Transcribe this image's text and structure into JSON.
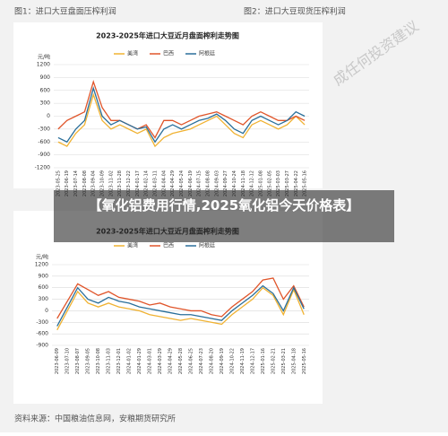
{
  "captions": [
    "图1：进口大豆盘面压榨利润",
    "图2：进口大豆现货压榨利润"
  ],
  "watermark": "成任何投资建议",
  "overlay_title": "【氧化铝费用行情,2025氧化铝今天价格表】",
  "source": "资料来源：中国粮油信息网，安粮期货研究所",
  "chart_data": [
    {
      "type": "line",
      "title": "2023-2025年进口大豆近月盘面榨利走势图",
      "y_unit": "元/吨",
      "categories": [
        "2023-05-25",
        "2023-06-19",
        "2023-07-14",
        "2023-08-08",
        "2023-09-04",
        "2023-10-09",
        "2023-11-02",
        "2023-11-28",
        "2023-12-22",
        "2024-01-17",
        "2024-02-14",
        "2024-03-11",
        "2024-04-04",
        "2024-04-29",
        "2024-05-24",
        "2024-06-19",
        "2024-07-15",
        "2024-08-08",
        "2024-09-03",
        "2024-09-27",
        "2024-10-24",
        "2024-11-18",
        "2024-12-12",
        "2025-01-08",
        "2025-02-05",
        "2025-03-03",
        "2025-03-27",
        "2025-04-22",
        "2025-05-16"
      ],
      "series": [
        {
          "name": "美湾",
          "color": "#f0b232",
          "values": [
            -600,
            -700,
            -400,
            -200,
            500,
            -100,
            -300,
            -200,
            -300,
            -400,
            -300,
            -700,
            -500,
            -400,
            -350,
            -300,
            -200,
            -100,
            0,
            -200,
            -400,
            -500,
            -200,
            -100,
            -200,
            -300,
            -200,
            0,
            -200
          ]
        },
        {
          "name": "巴西",
          "color": "#e0552a",
          "values": [
            -300,
            -100,
            0,
            100,
            800,
            200,
            -100,
            -100,
            -200,
            -300,
            -200,
            -500,
            -100,
            -100,
            -200,
            -100,
            0,
            50,
            100,
            0,
            -100,
            -200,
            0,
            100,
            0,
            -100,
            -100,
            0,
            -100
          ]
        },
        {
          "name": "阿根廷",
          "color": "#2a6f9a",
          "values": [
            -500,
            -600,
            -300,
            -100,
            650,
            0,
            -200,
            -100,
            -200,
            -300,
            -250,
            -600,
            -300,
            -200,
            -300,
            -200,
            -100,
            -50,
            50,
            -100,
            -300,
            -400,
            -100,
            0,
            -100,
            -200,
            -100,
            100,
            0
          ]
        }
      ],
      "ylim": [
        -1200,
        1200
      ],
      "yticks": [
        -1200,
        -900,
        -600,
        -300,
        0,
        300,
        600,
        900,
        1200
      ],
      "grid": true
    },
    {
      "type": "line",
      "title": "2023-2025年进口大豆近月盘面榨利走势图",
      "y_unit": "元/吨",
      "categories": [
        "2023-06-09",
        "2023-07-10",
        "2023-08-07",
        "2023-09-05",
        "2023-10-08",
        "2023-11-03",
        "2023-12-01",
        "2024-01-02",
        "2024-01-29",
        "2024-03-01",
        "2024-03-29",
        "2024-04-29",
        "2024-05-28",
        "2024-06-25",
        "2024-07-23",
        "2024-08-20",
        "2024-09-19",
        "2024-10-22",
        "2024-11-19",
        "2024-12-17",
        "2025-01-16",
        "2025-02-21",
        "2025-03-21",
        "2025-04-18",
        "2025-05-16"
      ],
      "series": [
        {
          "name": "美湾",
          "color": "#f0b232",
          "values": [
            -500,
            0,
            500,
            200,
            100,
            200,
            100,
            50,
            0,
            -100,
            -150,
            -200,
            -250,
            -200,
            -250,
            -300,
            -350,
            -100,
            100,
            300,
            600,
            400,
            -100,
            550,
            -100
          ]
        },
        {
          "name": "巴西",
          "color": "#e0552a",
          "values": [
            -200,
            250,
            700,
            550,
            400,
            500,
            350,
            300,
            250,
            150,
            200,
            100,
            50,
            0,
            0,
            -100,
            -150,
            100,
            300,
            500,
            800,
            850,
            300,
            650,
            100
          ]
        },
        {
          "name": "阿根廷",
          "color": "#2a6f9a",
          "values": [
            -400,
            100,
            600,
            300,
            200,
            350,
            250,
            200,
            100,
            50,
            0,
            -50,
            -100,
            -100,
            -150,
            -200,
            -250,
            0,
            200,
            400,
            650,
            450,
            0,
            600,
            50
          ]
        }
      ],
      "ylim": [
        -900,
        1200
      ],
      "yticks": [
        -900,
        -600,
        -300,
        0,
        300,
        600,
        900,
        1200
      ],
      "grid": true
    }
  ]
}
